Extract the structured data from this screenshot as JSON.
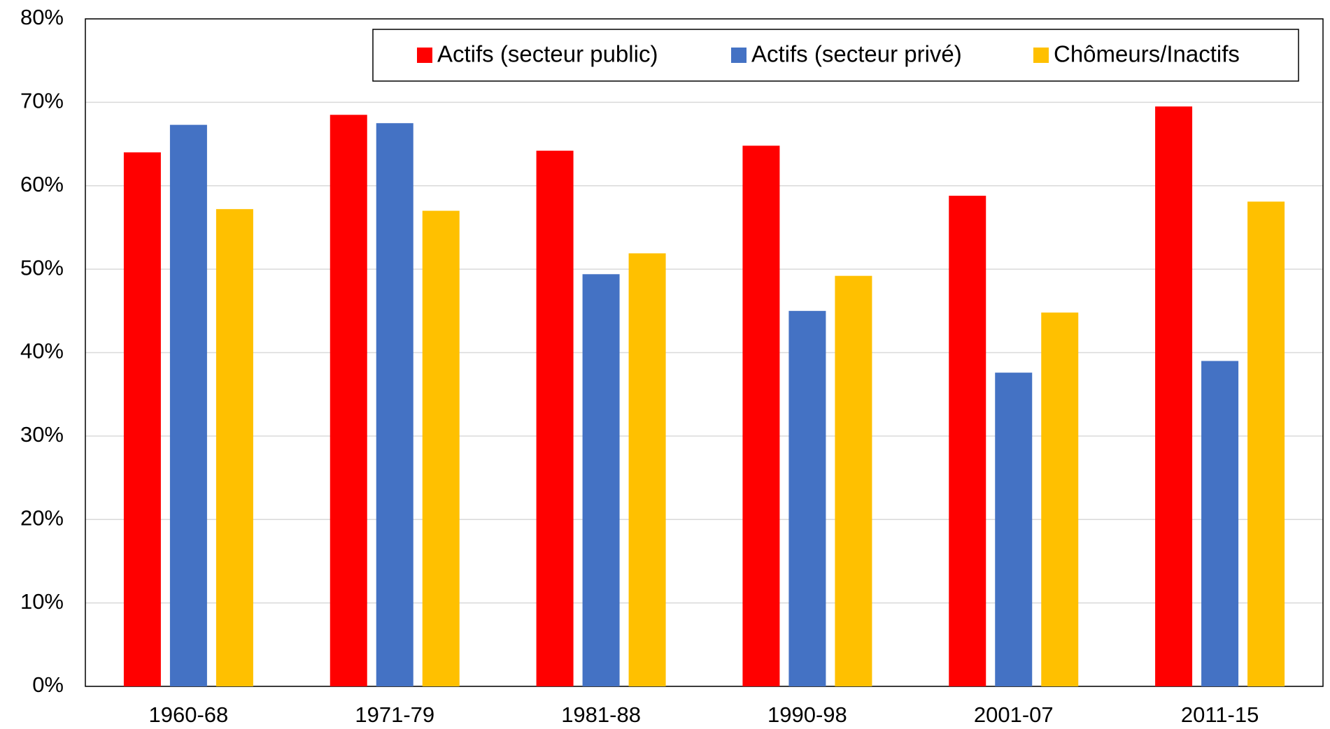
{
  "chart_data": {
    "type": "bar",
    "categories": [
      "1960-68",
      "1971-79",
      "1981-88",
      "1990-98",
      "2001-07",
      "2011-15"
    ],
    "series": [
      {
        "name": "Actifs (secteur public)",
        "color": "#ff0000",
        "values": [
          64.0,
          68.5,
          64.2,
          64.8,
          58.8,
          69.5
        ]
      },
      {
        "name": "Actifs (secteur privé)",
        "color": "#4472c4",
        "values": [
          67.3,
          67.5,
          49.4,
          45.0,
          37.6,
          39.0
        ]
      },
      {
        "name": "Chômeurs/Inactifs",
        "color": "#ffc000",
        "values": [
          57.2,
          57.0,
          51.9,
          49.2,
          44.8,
          58.1
        ]
      }
    ],
    "ylim": [
      0,
      80
    ],
    "yticks": [
      {
        "value": 0,
        "label": "0%"
      },
      {
        "value": 10,
        "label": "10%"
      },
      {
        "value": 20,
        "label": "20%"
      },
      {
        "value": 30,
        "label": "30%"
      },
      {
        "value": 40,
        "label": "40%"
      },
      {
        "value": 50,
        "label": "50%"
      },
      {
        "value": 60,
        "label": "60%"
      },
      {
        "value": 70,
        "label": "70%"
      },
      {
        "value": 80,
        "label": "80%"
      }
    ],
    "grid": true,
    "legend": "top-right"
  }
}
